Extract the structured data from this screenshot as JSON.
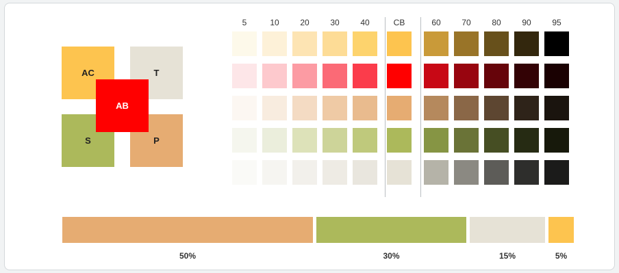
{
  "roles": [
    {
      "key": "ac",
      "label": "AC",
      "color": "#fdc44f"
    },
    {
      "key": "t",
      "label": "T",
      "color": "#e6e2d6"
    },
    {
      "key": "s",
      "label": "S",
      "color": "#acb95b"
    },
    {
      "key": "p",
      "label": "P",
      "color": "#e6ac72"
    },
    {
      "key": "ab",
      "label": "AB",
      "color": "#ff0000"
    }
  ],
  "columns": [
    "5",
    "10",
    "20",
    "30",
    "40",
    "CB",
    "60",
    "70",
    "80",
    "90",
    "95"
  ],
  "rows": [
    [
      "#fdf9ea",
      "#fdf1d8",
      "#fde4b3",
      "#fddc96",
      "#fdd36d",
      "#fdc44f",
      "#c99a39",
      "#997428",
      "#67501b",
      "#33270d",
      "#000000"
    ],
    [
      "#fde6e8",
      "#fdc9cd",
      "#fc9ba3",
      "#fb6a76",
      "#fb3c4b",
      "#ff0000",
      "#c80815",
      "#98050f",
      "#66040a",
      "#330205",
      "#1a0102"
    ],
    [
      "#fcf7f2",
      "#f8ecdf",
      "#f4dbc3",
      "#efcaa5",
      "#e9bb8e",
      "#e6ac72",
      "#b5895d",
      "#8a6747",
      "#5d4631",
      "#2e2319",
      "#1a140e"
    ],
    [
      "#f5f6ee",
      "#ebeedc",
      "#dde2b9",
      "#cdd499",
      "#bfc97c",
      "#acb95b",
      "#869544",
      "#6a7337",
      "#464e23",
      "#262b13",
      "#17190b"
    ],
    [
      "#fafaf7",
      "#f6f5f1",
      "#f2f0eb",
      "#eeebe4",
      "#e9e6de",
      "#e6e2d6",
      "#b5b3a8",
      "#8b8982",
      "#5d5c58",
      "#2e2e2c",
      "#1b1b1a"
    ]
  ],
  "distribution": [
    {
      "label": "50%",
      "value": 50,
      "color": "#e6ac72"
    },
    {
      "label": "30%",
      "value": 30,
      "color": "#acb95b"
    },
    {
      "label": "15%",
      "value": 15,
      "color": "#e6e2d6"
    },
    {
      "label": "5%",
      "value": 5,
      "color": "#fdc44f"
    }
  ]
}
